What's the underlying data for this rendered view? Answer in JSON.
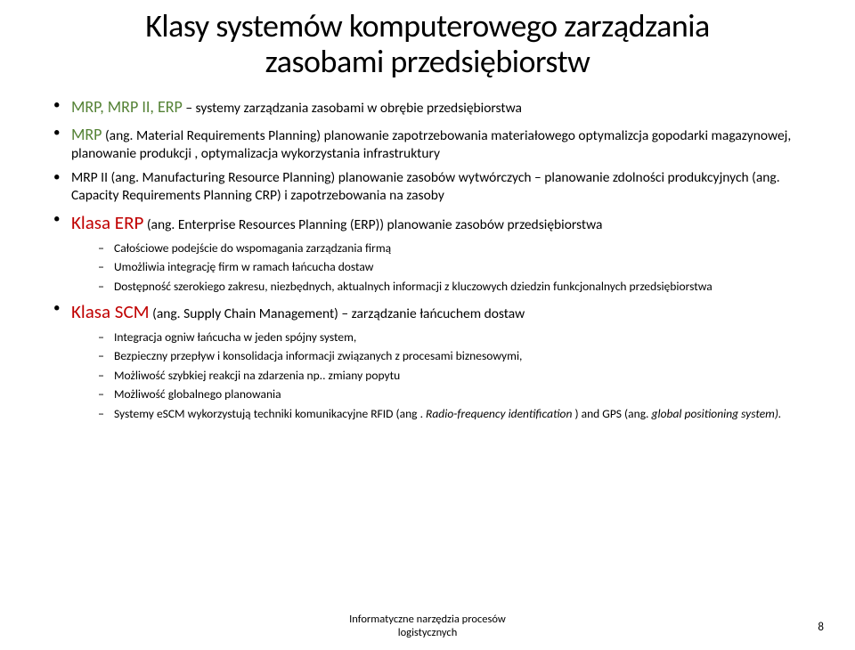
{
  "title_line1": "Klasy systemów komputerowego zarządzania",
  "title_line2": "zasobami przedsiębiorstw",
  "bullet1_colored": "MRP, MRP II, ERP",
  "bullet1_rest": " – systemy zarządzania zasobami w obrębie przedsiębiorstwa",
  "bullet2_label": "MRP",
  "bullet2_rest": " (ang. Material Requirements Planning) planowanie zapotrzebowania materiałowego optymalizcja gopodarki magazynowej, planowanie produkcji , optymalizacja wykorzystania infrastruktury",
  "bullet3_label": "MRP II",
  "bullet3_rest": " (ang. Manufacturing Resource Planning) planowanie zasobów wytwórczych – planowanie zdolności produkcyjnych  (ang. Capacity Requirements Planning CRP) i zapotrzebowania na zasoby",
  "bullet4_label": "Klasa ERP",
  "bullet4_rest": " (ang. Enterprise Resources Planning (ERP)) planowanie zasobów przedsiębiorstwa",
  "bullet4_sub": [
    "Całościowe podejście do wspomagania zarządzania firmą",
    "Umożliwia integrację firm w ramach łańcucha dostaw",
    "Dostępność szerokiego zakresu, niezbędnych, aktualnych informacji z kluczowych dziedzin funkcjonalnych przedsiębiorstwa"
  ],
  "bullet5_label": "Klasa SCM",
  "bullet5_rest": " (ang. Supply Chain Management) – zarządzanie łańcuchem dostaw",
  "bullet5_sub": [
    {
      "text": "Integracja ogniw łańcucha w jeden spójny system,"
    },
    {
      "text": "Bezpieczny przepływ i konsolidacja informacji związanych z procesami biznesowymi,"
    },
    {
      "text": "Możliwość szybkiej reakcji na zdarzenia np.. zmiany popytu"
    },
    {
      "text": "Możliwość globalnego planowania"
    },
    {
      "text_pre": "Systemy eSCM wykorzystują techniki komunikacyjne RFID (ang . ",
      "italic1": "Radio-frequency identification",
      "mid": " ) and GPS (ang. ",
      "italic2": "global positioning system).",
      "post": ""
    }
  ],
  "footer_line1": "Informatyczne narzędzia procesów",
  "footer_line2": "logistycznych",
  "page": "8",
  "colors": {
    "green": "#548235",
    "red": "#c00000",
    "text": "#000000",
    "bg": "#ffffff"
  }
}
